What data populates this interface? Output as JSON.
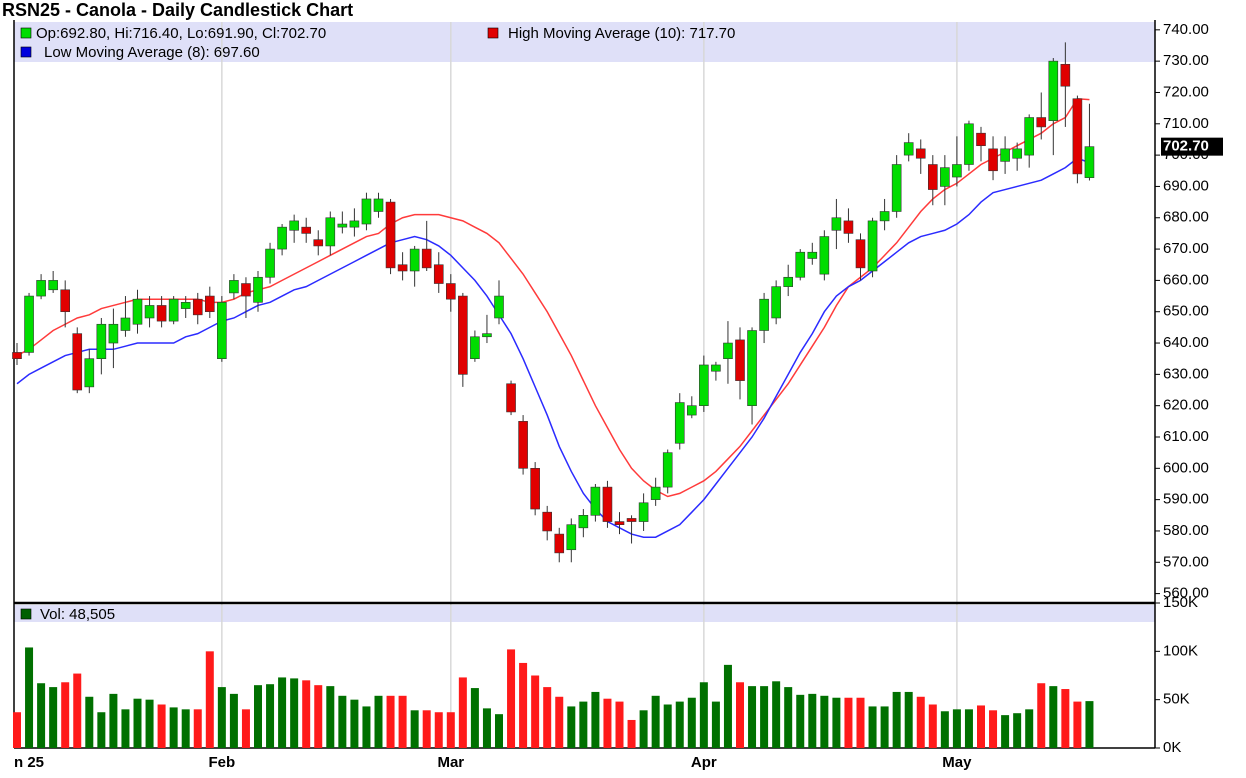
{
  "chart_data": [
    {
      "type": "candlestick",
      "title": "RSN25 - Canola - Daily Candlestick Chart",
      "categories": [
        "n 25",
        null,
        null,
        null,
        null,
        null,
        null,
        null,
        null,
        null,
        null,
        null,
        null,
        null,
        null,
        null,
        null,
        "Feb",
        null,
        null,
        null,
        null,
        null,
        null,
        null,
        null,
        null,
        null,
        null,
        null,
        null,
        null,
        null,
        null,
        null,
        null,
        "Mar",
        null,
        null,
        null,
        null,
        null,
        null,
        null,
        null,
        null,
        null,
        null,
        null,
        null,
        null,
        null,
        null,
        null,
        null,
        null,
        null,
        "Apr",
        null,
        null,
        null,
        null,
        null,
        null,
        null,
        null,
        null,
        null,
        null,
        null,
        null,
        null,
        null,
        null,
        null,
        null,
        null,
        null,
        "May",
        null,
        null,
        null,
        null,
        null,
        null,
        null,
        null,
        null,
        null,
        null
      ],
      "ylim": [
        557,
        742.5
      ],
      "yticks": [
        {
          "value": 740,
          "label": "740.00"
        },
        {
          "value": 730,
          "label": "730.00"
        },
        {
          "value": 720,
          "label": "720.00"
        },
        {
          "value": 710,
          "label": "710.00"
        },
        {
          "value": 700,
          "label": "700.00"
        },
        {
          "value": 690,
          "label": "690.00"
        },
        {
          "value": 680,
          "label": "680.00"
        },
        {
          "value": 670,
          "label": "670.00"
        },
        {
          "value": 660,
          "label": "660.00"
        },
        {
          "value": 650,
          "label": "650.00"
        },
        {
          "value": 640,
          "label": "640.00"
        },
        {
          "value": 630,
          "label": "630.00"
        },
        {
          "value": 620,
          "label": "620.00"
        },
        {
          "value": 610,
          "label": "610.00"
        },
        {
          "value": 600,
          "label": "600.00"
        },
        {
          "value": 590,
          "label": "590.00"
        },
        {
          "value": 580,
          "label": "580.00"
        },
        {
          "value": 570,
          "label": "570.00"
        },
        {
          "value": 560,
          "label": "560.00"
        }
      ],
      "grid": "x",
      "up_color": "#00dd00",
      "down_color": "#e00000",
      "series": [
        {
          "name": "Op:692.80, Hi:716.40, Lo:691.90, Cl:702.70",
          "color": "#00dd00",
          "last_label": "702.70",
          "open": [
            637,
            637,
            655,
            657,
            657,
            643,
            626,
            635,
            640,
            644,
            646,
            648,
            652,
            647,
            651,
            654,
            655,
            635,
            656,
            659,
            653,
            661,
            670,
            676,
            677,
            673,
            671,
            677,
            677,
            678,
            682,
            685,
            665,
            663,
            670,
            665,
            659,
            655,
            635,
            642,
            648,
            627,
            615,
            600,
            586,
            579,
            574,
            581,
            585,
            594,
            583,
            584,
            583,
            590,
            594,
            608,
            617,
            620,
            631,
            635,
            641,
            620,
            644,
            648,
            658,
            661,
            667,
            662,
            676,
            679,
            673,
            663,
            679,
            682,
            700,
            702,
            697,
            690,
            693,
            697,
            707,
            702,
            698,
            699,
            700,
            712,
            711,
            729,
            718,
            692.8
          ],
          "high": [
            640,
            656,
            662,
            663,
            660,
            645,
            638,
            648,
            651,
            655,
            657,
            655,
            655,
            655,
            655,
            656,
            658,
            655,
            662,
            661,
            663,
            672,
            678,
            681,
            680,
            676,
            682,
            682,
            683,
            688,
            688,
            686,
            669,
            671,
            679,
            669,
            662,
            656,
            644,
            649,
            660,
            628,
            617,
            602,
            588,
            581,
            584,
            587,
            595,
            596,
            586,
            585,
            592,
            597,
            606,
            624,
            623,
            636,
            634,
            647,
            645,
            645,
            656,
            660,
            665,
            670,
            672,
            676,
            686,
            683,
            675,
            680,
            686,
            700,
            707,
            705,
            700,
            700,
            706,
            711,
            709,
            706,
            706,
            704,
            713,
            720,
            731,
            736,
            719,
            716.4
          ],
          "low": [
            633,
            636,
            654,
            656,
            645,
            624,
            624,
            630,
            632,
            642,
            643,
            645,
            645,
            646,
            648,
            646,
            648,
            634,
            654,
            648,
            650,
            659,
            668,
            672,
            672,
            668,
            668,
            675,
            674,
            676,
            680,
            662,
            660,
            658,
            663,
            656,
            650,
            626,
            634,
            640,
            646,
            617,
            598,
            585,
            577,
            570,
            570,
            578,
            583,
            581,
            579,
            576,
            580,
            588,
            592,
            606,
            616,
            618,
            628,
            627,
            622,
            614,
            640,
            646,
            655,
            660,
            665,
            660,
            670,
            672,
            660,
            661,
            676,
            680,
            698,
            694,
            684,
            684,
            690,
            695,
            698,
            692,
            694,
            695,
            696,
            705,
            700,
            709,
            691,
            691.9
          ],
          "close": [
            635,
            655,
            660,
            660,
            650,
            625,
            635,
            646,
            646,
            648,
            654,
            652,
            647,
            654,
            653,
            649,
            650,
            653,
            660,
            655,
            661,
            670,
            677,
            679,
            675,
            671,
            680,
            678,
            679,
            686,
            686,
            664,
            663,
            670,
            664,
            659,
            654,
            630,
            642,
            643,
            655,
            618,
            600,
            587,
            580,
            573,
            582,
            585,
            594,
            583,
            582,
            583,
            589,
            594,
            605,
            621,
            620,
            633,
            633,
            640,
            628,
            644,
            654,
            658,
            661,
            669,
            669,
            674,
            680,
            675,
            664,
            679,
            682,
            697,
            704,
            699,
            689,
            696,
            697,
            710,
            703,
            695,
            702,
            702,
            712,
            709,
            730,
            722,
            694,
            702.7
          ]
        },
        {
          "name": "High Moving Average (10): 717.70",
          "color": "#ff3b3b",
          "values": [
            636,
            638,
            641,
            644,
            646,
            648,
            649,
            651,
            652,
            653,
            654,
            654,
            654,
            654,
            654,
            654,
            653,
            653,
            654,
            656,
            657,
            658,
            660,
            662,
            664,
            666,
            668,
            670,
            672,
            674,
            675,
            678,
            680,
            681,
            681,
            681,
            680,
            679,
            677,
            675,
            672,
            667,
            662,
            656,
            650,
            643,
            636,
            628,
            620,
            613,
            606,
            600,
            596,
            593,
            591,
            592,
            594,
            596,
            599,
            603,
            607,
            612,
            617,
            622,
            627,
            633,
            639,
            645,
            652,
            658,
            661,
            664,
            668,
            672,
            677,
            682,
            686,
            689,
            691,
            694,
            697,
            699,
            701,
            703,
            705,
            707,
            710,
            712,
            718,
            717.7
          ]
        },
        {
          "name": "Low Moving Average (8): 697.60",
          "color": "#2b2bff",
          "values": [
            627,
            630,
            632,
            634,
            636,
            637,
            638,
            638,
            638,
            639,
            640,
            640,
            640,
            640,
            642,
            643,
            645,
            647,
            648,
            650,
            652,
            653,
            655,
            657,
            658,
            660,
            662,
            664,
            666,
            668,
            670,
            672,
            673,
            674,
            673,
            671,
            668,
            664,
            660,
            655,
            649,
            643,
            635,
            626,
            617,
            607,
            599,
            592,
            587,
            583,
            581,
            579,
            578,
            578,
            580,
            582,
            586,
            590,
            595,
            600,
            605,
            610,
            616,
            623,
            630,
            637,
            643,
            650,
            655,
            658,
            660,
            663,
            666,
            669,
            672,
            674,
            675,
            676,
            678,
            681,
            685,
            688,
            689,
            690,
            691,
            692,
            694,
            696,
            699,
            697.6
          ]
        }
      ]
    },
    {
      "type": "bar",
      "up_color": "#007000",
      "down_color": "#ff1a1a",
      "ylim": [
        0,
        150
      ],
      "yticks": [
        {
          "value": 150,
          "label": "150K"
        },
        {
          "value": 100,
          "label": "100K"
        },
        {
          "value": 50,
          "label": "50K"
        },
        {
          "value": 0,
          "label": "0K"
        }
      ],
      "series": [
        {
          "name": "Vol: 48,505",
          "color": "#006000",
          "values": [
            37,
            104,
            67,
            63,
            68,
            77,
            53,
            37,
            56,
            40,
            51,
            50,
            45,
            42,
            40,
            40,
            100,
            63,
            56,
            40,
            65,
            66,
            73,
            72,
            70,
            65,
            64,
            54,
            50,
            43,
            54,
            54,
            54,
            39,
            39,
            37,
            37,
            73,
            62,
            41,
            35,
            102,
            88,
            75,
            63,
            53,
            43,
            48,
            58,
            51,
            48,
            29,
            39,
            54,
            45,
            48,
            52,
            68,
            48,
            86,
            68,
            64,
            64,
            69,
            63,
            55,
            56,
            54,
            52,
            52,
            52,
            43,
            43,
            58,
            58,
            53,
            45,
            38,
            40,
            40,
            44,
            39,
            34,
            36,
            40,
            67,
            64,
            61,
            48,
            48.505
          ]
        }
      ]
    }
  ]
}
